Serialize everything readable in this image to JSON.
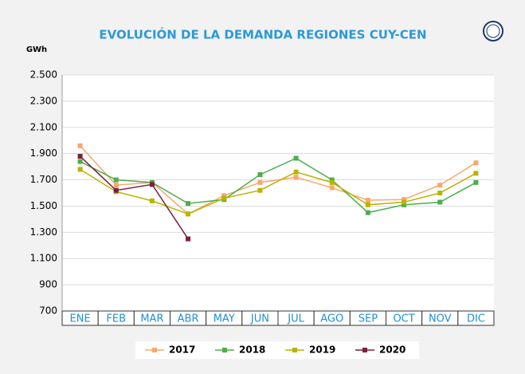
{
  "chart_data": {
    "type": "line",
    "title": "EVOLUCIÓN DE LA DEMANDA REGIONES CUY-CEN",
    "y_label": "GWh",
    "categories": [
      "ENE",
      "FEB",
      "MAR",
      "ABR",
      "MAY",
      "JUN",
      "JUL",
      "AGO",
      "SEP",
      "OCT",
      "NOV",
      "DIC"
    ],
    "series": [
      {
        "name": "2017",
        "color": "#f7a86e",
        "values": [
          1960,
          1660,
          1680,
          1440,
          1580,
          1680,
          1720,
          1640,
          1545,
          1550,
          1660,
          1830
        ]
      },
      {
        "name": "2018",
        "color": "#4cae4c",
        "values": [
          1840,
          1700,
          1680,
          1520,
          1550,
          1740,
          1865,
          1700,
          1450,
          1510,
          1530,
          1680
        ]
      },
      {
        "name": "2019",
        "color": "#b8b400",
        "values": [
          1780,
          1610,
          1540,
          1440,
          1560,
          1620,
          1760,
          1680,
          1510,
          1530,
          1600,
          1750
        ]
      },
      {
        "name": "2020",
        "color": "#7d1f3c",
        "values": [
          1880,
          1620,
          1665,
          1250,
          null,
          null,
          null,
          null,
          null,
          null,
          null,
          null
        ]
      }
    ],
    "ylim": [
      700,
      2500
    ],
    "yticks": [
      700,
      900,
      {
        "value": 1100,
        "label": "1.100"
      },
      {
        "value": 1300,
        "label": "1.300"
      },
      {
        "value": 1500,
        "label": "1.500"
      },
      {
        "value": 1700,
        "label": "1.700"
      },
      {
        "value": 1900,
        "label": "1.900"
      },
      {
        "value": 2100,
        "label": "2.100"
      },
      {
        "value": 2300,
        "label": "2.300"
      },
      {
        "value": 2500,
        "label": "2.500"
      }
    ],
    "grid": true,
    "legend": "bottom"
  }
}
